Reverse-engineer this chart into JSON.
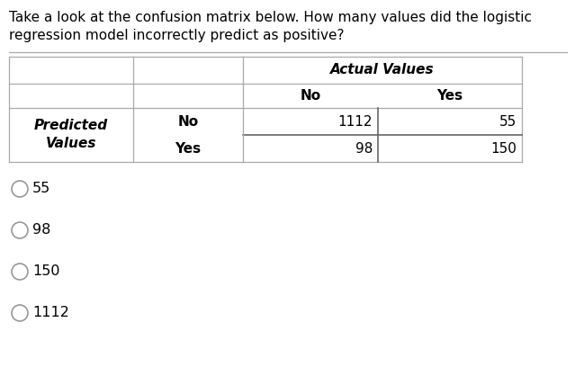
{
  "question_line1": "Take a look at the confusion matrix below. How many values did the logistic",
  "question_line2": "regression model incorrectly predict as positive?",
  "actual_values_label": "Actual Values",
  "actual_no_label": "No",
  "actual_yes_label": "Yes",
  "predicted_label_line1": "Predicted",
  "predicted_label_line2": "Values",
  "predicted_no_label": "No",
  "predicted_yes_label": "Yes",
  "cell_TN": "1112",
  "cell_FN": "55",
  "cell_FP": "98",
  "cell_TP": "150",
  "options": [
    "55",
    "98",
    "150",
    "1112"
  ],
  "bg_color": "#ffffff",
  "text_color": "#000000",
  "table_border_color": "#aaaaaa",
  "inner_border_color": "#666666",
  "font_size_question": 11.0,
  "font_size_table": 11.0,
  "font_size_options": 11.5
}
